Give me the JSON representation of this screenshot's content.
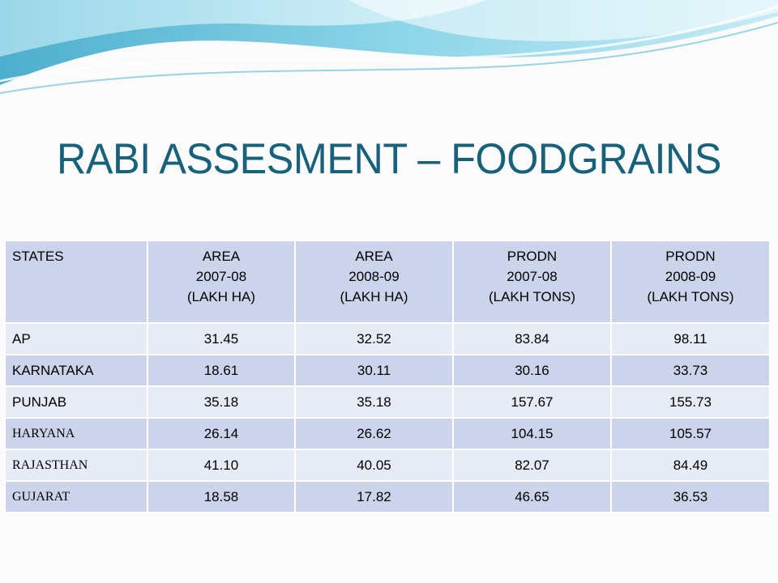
{
  "slide": {
    "title": "RABI ASSESMENT – FOODGRAINS"
  },
  "table": {
    "headers": [
      [
        "STATES"
      ],
      [
        "AREA",
        "2007-08",
        "(LAKH HA)"
      ],
      [
        "AREA",
        "2008-09",
        "(LAKH HA)"
      ],
      [
        "PRODN",
        "2007-08",
        "(LAKH TONS)"
      ],
      [
        "PRODN",
        "2008-09",
        "(LAKH TONS)"
      ]
    ],
    "rows": [
      [
        "AP",
        "31.45",
        "32.52",
        "83.84",
        "98.11"
      ],
      [
        "KARNATAKA",
        "18.61",
        "30.11",
        "30.16",
        "33.73"
      ],
      [
        "PUNJAB",
        "35.18",
        "35.18",
        "157.67",
        "155.73"
      ],
      [
        "HARYANA",
        "26.14",
        "26.62",
        "104.15",
        "105.57"
      ],
      [
        "RAJASTHAN",
        "41.10",
        "40.05",
        "82.07",
        "84.49"
      ],
      [
        "GUJARAT",
        "18.58",
        "17.82",
        "46.65",
        "36.53"
      ]
    ]
  },
  "colors": {
    "title": "#17627a",
    "header_fill": "#cbd4ea",
    "row_light": "#e7ebf5",
    "row_dark": "#cbd4ea"
  }
}
